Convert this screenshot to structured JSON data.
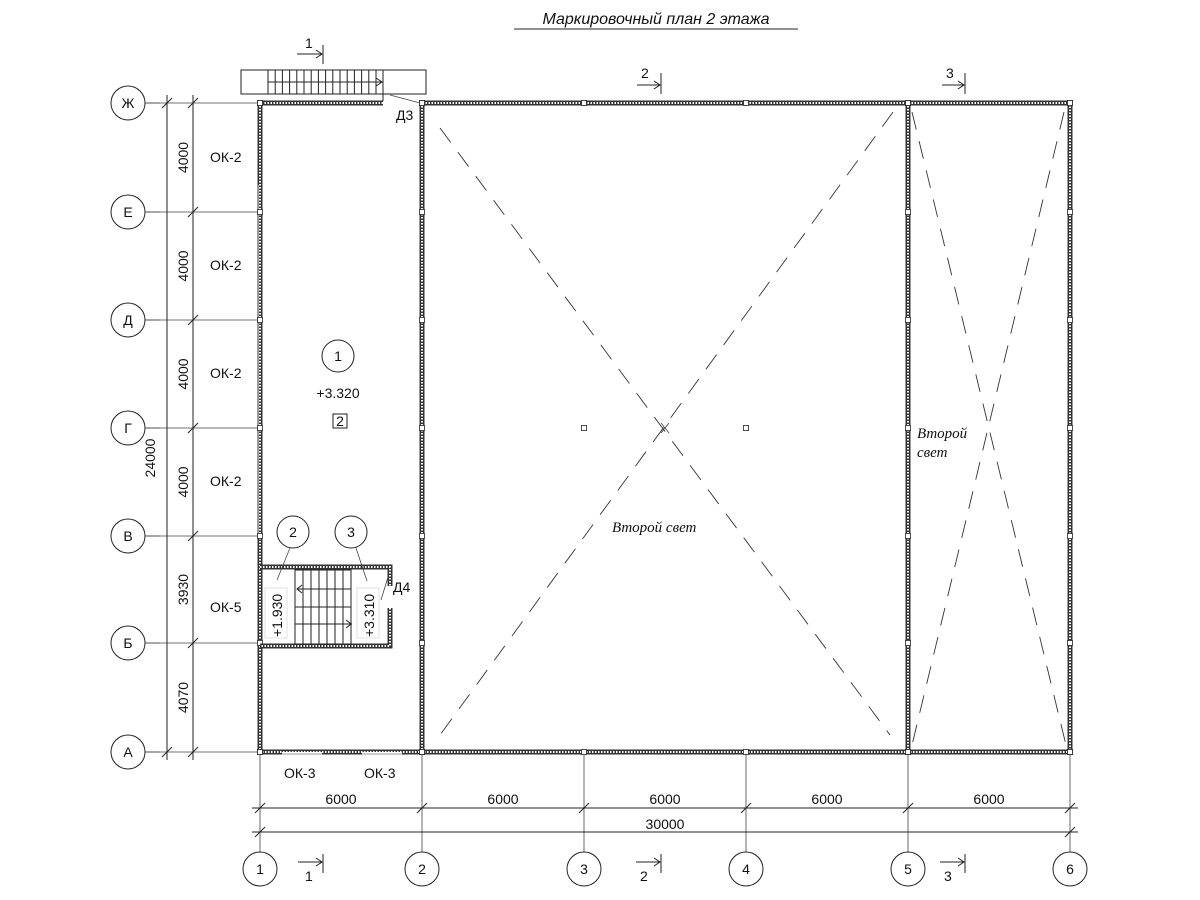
{
  "title": "Маркировочный план 2 этажа",
  "row_axes": [
    "Ж",
    "Е",
    "Д",
    "Г",
    "В",
    "Б",
    "А"
  ],
  "column_axes": [
    "1",
    "2",
    "3",
    "4",
    "5",
    "6"
  ],
  "vertical_dims": {
    "total": "24000",
    "segments": [
      "4000",
      "4000",
      "4000",
      "4000",
      "3930",
      "4070"
    ]
  },
  "horizontal_dims": {
    "total": "30000",
    "segments": [
      "6000",
      "6000",
      "6000",
      "6000",
      "6000"
    ]
  },
  "window_marks_left": [
    "ОК-2",
    "ОК-2",
    "ОК-2",
    "ОК-2",
    "ОК-5"
  ],
  "window_marks_bottom": [
    "ОК-3",
    "ОК-3"
  ],
  "door_marks": [
    "Д3",
    "Д4"
  ],
  "section_marks": [
    "1",
    "2",
    "3"
  ],
  "rooms": [
    {
      "number": "1",
      "level": "+3.320",
      "tag": "2"
    },
    {
      "number": "2",
      "level": "+1.930"
    },
    {
      "number": "3",
      "level": "+3.310"
    }
  ],
  "void_label_main": "Второй свет",
  "void_label_side": [
    "Второй",
    "свет"
  ]
}
